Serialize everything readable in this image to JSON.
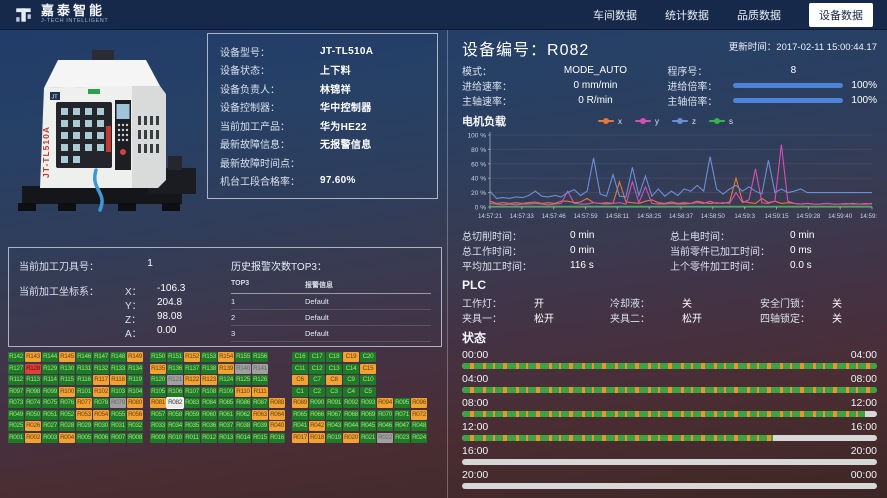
{
  "topbar": {
    "brand": "嘉泰智能",
    "brand_sub": "J-TECH INTELLIGENT",
    "nav": [
      {
        "label": "车间数据",
        "active": false
      },
      {
        "label": "统计数据",
        "active": false
      },
      {
        "label": "品质数据",
        "active": false
      },
      {
        "label": "设备数据",
        "active": true
      }
    ]
  },
  "machine_visual": {
    "side_label": "JT-TL510A",
    "logo": "JT"
  },
  "device_info": {
    "rows": [
      {
        "label": "设备型号：",
        "value": "JT-TL510A"
      },
      {
        "label": "设备状态：",
        "value": "上下料"
      },
      {
        "label": "设备负责人：",
        "value": "林锦祥"
      },
      {
        "label": "设备控制器：",
        "value": "华中控制器"
      },
      {
        "label": "当前加工产品：",
        "value": "华为HE22"
      },
      {
        "label": "最新故障信息：",
        "value": "无报警信息"
      },
      {
        "label": "最新故障时间点：",
        "value": ""
      },
      {
        "label": "机台工段合格率：",
        "value": "97.60%"
      }
    ]
  },
  "tool": {
    "tool_label": "当前加工刀具号：",
    "tool_value": "1",
    "coord_label": "当前加工坐标系：",
    "coords": [
      {
        "axis": "X：",
        "value": "-106.3"
      },
      {
        "axis": "Y：",
        "value": "204.8"
      },
      {
        "axis": "Z：",
        "value": "98.08"
      },
      {
        "axis": "A：",
        "value": "0.00"
      }
    ]
  },
  "alarm_top3": {
    "title": "历史报警次数TOP3：",
    "headers": [
      "TOP3",
      "报警信息"
    ],
    "rows": [
      [
        "1",
        "Default"
      ],
      [
        "2",
        "Default"
      ],
      [
        "3",
        "Default"
      ]
    ]
  },
  "device_header": {
    "title_label": "设备编号：",
    "title_value": "R082",
    "update_label": "更新时间：",
    "update_value": "2017-02-11 15:00:44.17"
  },
  "params": {
    "mode_label": "模式：",
    "mode_value": "MODE_AUTO",
    "program_label": "程序号：",
    "program_value": "8",
    "feed_rate_label": "进给速率：",
    "feed_rate_value": "0 mm/min",
    "feed_override_label": "进给倍率：",
    "feed_override_value": "100%",
    "feed_override_pct": 100,
    "spindle_rate_label": "主轴速率：",
    "spindle_rate_value": "0 R/min",
    "spindle_override_label": "主轴倍率：",
    "spindle_override_value": "100%",
    "spindle_override_pct": 100
  },
  "chart_data": {
    "type": "line",
    "title": "电机负载",
    "ylim": [
      0,
      100
    ],
    "grid": false,
    "legend_position": "top-right",
    "y_ticks": [
      "0 %",
      "20 %",
      "40 %",
      "60 %",
      "80 %",
      "100 %"
    ],
    "x_ticks": [
      "14:57:21",
      "14:57:33",
      "14:57:46",
      "14:57:59",
      "14:58:11",
      "14:58:25",
      "14:58:37",
      "14:58:50",
      "14:59:3",
      "14:59:15",
      "14:59:28",
      "14:59:40",
      "14:59:54"
    ],
    "series": [
      {
        "name": "x",
        "color": "#e8763a",
        "values": [
          8,
          5,
          6,
          5,
          6,
          5,
          6,
          7,
          5,
          6,
          5,
          8,
          8,
          6,
          7,
          12,
          6,
          5,
          6,
          5,
          35,
          7,
          6,
          5,
          8,
          10,
          6,
          5,
          7,
          5,
          6,
          5,
          8,
          6,
          5,
          6,
          5,
          7,
          40,
          8,
          6,
          5,
          12,
          6,
          8,
          5,
          6,
          5,
          4,
          5,
          4,
          4,
          5,
          4,
          4,
          4,
          5,
          4,
          4,
          5
        ]
      },
      {
        "name": "y",
        "color": "#d450b4",
        "values": [
          5,
          4,
          3,
          4,
          3,
          4,
          4,
          5,
          4,
          3,
          4,
          5,
          22,
          5,
          4,
          4,
          6,
          5,
          4,
          5,
          6,
          4,
          35,
          6,
          28,
          5,
          4,
          4,
          5,
          4,
          4,
          5,
          6,
          5,
          8,
          5,
          6,
          5,
          20,
          6,
          10,
          53,
          6,
          5,
          8,
          87,
          8,
          5,
          4,
          5,
          4,
          4,
          5,
          4,
          4,
          5,
          4,
          4,
          5,
          4
        ]
      },
      {
        "name": "z",
        "color": "#6b8fd4",
        "values": [
          22,
          12,
          13,
          12,
          14,
          13,
          16,
          22,
          15,
          14,
          16,
          14,
          20,
          24,
          16,
          22,
          68,
          18,
          15,
          45,
          15,
          14,
          55,
          16,
          43,
          15,
          25,
          15,
          22,
          16,
          25,
          22,
          30,
          22,
          70,
          25,
          18,
          25,
          30,
          22,
          28,
          22,
          18,
          65,
          20,
          25,
          20,
          22,
          25,
          20,
          20,
          20,
          20,
          20,
          20,
          20,
          20,
          20,
          20,
          20
        ]
      },
      {
        "name": "s",
        "color": "#35b44a",
        "values": [
          1,
          1,
          1,
          1,
          1,
          1,
          1,
          1,
          1,
          1,
          1,
          1,
          1,
          1,
          1,
          1,
          1,
          1,
          1,
          1,
          1,
          1,
          1,
          1,
          1,
          1,
          1,
          1,
          1,
          1,
          1,
          1,
          1,
          1,
          1,
          1,
          1,
          1,
          1,
          1,
          1,
          1,
          1,
          1,
          1,
          1,
          1,
          1,
          1,
          1,
          1,
          1,
          1,
          1,
          1,
          1,
          1,
          1,
          1,
          1
        ]
      }
    ]
  },
  "time_stats": {
    "left": [
      {
        "label": "总切削时间：",
        "value": "0 min"
      },
      {
        "label": "总工作时间：",
        "value": "0 min"
      },
      {
        "label": "平均加工时间：",
        "value": "116 s"
      }
    ],
    "right": [
      {
        "label": "总上电时间：",
        "value": "0 min"
      },
      {
        "label": "当前零件已加工时间：",
        "value": "0 ms"
      },
      {
        "label": "上个零件加工时间：",
        "value": "0.0 s"
      }
    ]
  },
  "plc": {
    "title": "PLC",
    "items": [
      {
        "label": "工作灯：",
        "value": "开"
      },
      {
        "label": "冷却液：",
        "value": "关"
      },
      {
        "label": "安全门锁：",
        "value": "关"
      },
      {
        "label": "夹具一：",
        "value": "松开"
      },
      {
        "label": "夹具二：",
        "value": "松开"
      },
      {
        "label": "四轴锁定：",
        "value": "关"
      }
    ]
  },
  "status": {
    "title": "状态",
    "bars": [
      {
        "start": "00:00",
        "end": "04:00",
        "filled": 1
      },
      {
        "start": "04:00",
        "end": "08:00",
        "filled": 1
      },
      {
        "start": "08:00",
        "end": "12:00",
        "filled": 0.97
      },
      {
        "start": "12:00",
        "end": "16:00",
        "filled": 0.75
      },
      {
        "start": "16:00",
        "end": "20:00",
        "filled": 0
      },
      {
        "start": "20:00",
        "end": "00:00",
        "filled": 0
      }
    ]
  },
  "colors": {
    "accent_blue": "#4d84d8",
    "cell_green": "#1e7a28",
    "cell_orange": "#f0a232",
    "cell_red": "#e04038",
    "cell_gray": "#a0a0a0",
    "status_green": "#3fa141",
    "status_orange": "#e5972f",
    "topbar_bg": "#16294a"
  },
  "machine_grid": {
    "rows": [
      [
        [
          [
            "R142",
            "g"
          ],
          [
            "R143",
            "o"
          ],
          [
            "R144",
            "g"
          ],
          [
            "R145",
            "o"
          ],
          [
            "R146",
            "g"
          ],
          [
            "R147",
            "g"
          ],
          [
            "R148",
            "g"
          ],
          [
            "R149",
            "o"
          ]
        ],
        [
          [
            "R150",
            "g"
          ],
          [
            "R151",
            "g"
          ],
          [
            "R152",
            "o"
          ],
          [
            "R153",
            "g"
          ],
          [
            "R154",
            "o"
          ],
          [
            "R155",
            "g"
          ],
          [
            "R156",
            "g"
          ]
        ],
        [
          [
            "C16",
            "g"
          ],
          [
            "C17",
            "g"
          ],
          [
            "C18",
            "g"
          ],
          [
            "C19",
            "o"
          ],
          [
            "C20",
            "g"
          ]
        ]
      ],
      [
        [
          [
            "R127",
            "g"
          ],
          [
            "R128",
            "r"
          ],
          [
            "R129",
            "g"
          ],
          [
            "R130",
            "g"
          ],
          [
            "R131",
            "g"
          ],
          [
            "R132",
            "g"
          ],
          [
            "R133",
            "g"
          ],
          [
            "R134",
            "g"
          ]
        ],
        [
          [
            "R135",
            "o"
          ],
          [
            "R136",
            "g"
          ],
          [
            "R137",
            "g"
          ],
          [
            "R138",
            "g"
          ],
          [
            "R139",
            "o"
          ],
          [
            "R140",
            "x"
          ],
          [
            "R141",
            "x"
          ]
        ],
        [
          [
            "C11",
            "g"
          ],
          [
            "C12",
            "g"
          ],
          [
            "C13",
            "g"
          ],
          [
            "C14",
            "g"
          ],
          [
            "C15",
            "o"
          ]
        ]
      ],
      [
        [
          [
            "R112",
            "g"
          ],
          [
            "R113",
            "g"
          ],
          [
            "R114",
            "g"
          ],
          [
            "R115",
            "g"
          ],
          [
            "R116",
            "g"
          ],
          [
            "R117",
            "o"
          ],
          [
            "R118",
            "o"
          ],
          [
            "R119",
            "g"
          ]
        ],
        [
          [
            "R120",
            "g"
          ],
          [
            "R121",
            "x"
          ],
          [
            "R122",
            "o"
          ],
          [
            "R123",
            "o"
          ],
          [
            "R124",
            "g"
          ],
          [
            "R125",
            "g"
          ],
          [
            "R126",
            "g"
          ]
        ],
        [
          [
            "C6",
            "o"
          ],
          [
            "C7",
            "g"
          ],
          [
            "C8",
            "o"
          ],
          [
            "C9",
            "g"
          ],
          [
            "C10",
            "g"
          ]
        ]
      ],
      [
        [
          [
            "R097",
            "g"
          ],
          [
            "R098",
            "g"
          ],
          [
            "R099",
            "g"
          ],
          [
            "R100",
            "o"
          ],
          [
            "R101",
            "g"
          ],
          [
            "R102",
            "o"
          ],
          [
            "R103",
            "g"
          ],
          [
            "R104",
            "g"
          ]
        ],
        [
          [
            "R105",
            "g"
          ],
          [
            "R106",
            "g"
          ],
          [
            "R107",
            "g"
          ],
          [
            "R108",
            "g"
          ],
          [
            "R109",
            "g"
          ],
          [
            "R110",
            "o"
          ],
          [
            "R111",
            "o"
          ]
        ],
        [
          [
            "C1",
            "g"
          ],
          [
            "C2",
            "g"
          ],
          [
            "C3",
            "g"
          ],
          [
            "C4",
            "g"
          ],
          [
            "C5",
            "g"
          ]
        ]
      ],
      [
        [
          [
            "R073",
            "g"
          ],
          [
            "R074",
            "g"
          ],
          [
            "R075",
            "g"
          ],
          [
            "R076",
            "g"
          ],
          [
            "R077",
            "o"
          ],
          [
            "R078",
            "g"
          ],
          [
            "R079",
            "x"
          ],
          [
            "R080",
            "o"
          ]
        ],
        [
          [
            "R081",
            "o"
          ],
          [
            "R082",
            "s"
          ],
          [
            "R083",
            "g"
          ],
          [
            "R084",
            "g"
          ],
          [
            "R085",
            "g"
          ],
          [
            "R086",
            "g"
          ],
          [
            "R087",
            "g"
          ],
          [
            "R088",
            "o"
          ]
        ],
        [
          [
            "R089",
            "o"
          ],
          [
            "R090",
            "g"
          ],
          [
            "R091",
            "g"
          ],
          [
            "R092",
            "g"
          ],
          [
            "R093",
            "g"
          ],
          [
            "R094",
            "o"
          ],
          [
            "R095",
            "g"
          ],
          [
            "R096",
            "o"
          ]
        ]
      ],
      [
        [
          [
            "R049",
            "g"
          ],
          [
            "R050",
            "g"
          ],
          [
            "R051",
            "g"
          ],
          [
            "R052",
            "g"
          ],
          [
            "R053",
            "o"
          ],
          [
            "R054",
            "o"
          ],
          [
            "R055",
            "g"
          ],
          [
            "R056",
            "o"
          ]
        ],
        [
          [
            "R057",
            "g"
          ],
          [
            "R058",
            "g"
          ],
          [
            "R059",
            "g"
          ],
          [
            "R060",
            "g"
          ],
          [
            "R061",
            "g"
          ],
          [
            "R062",
            "g"
          ],
          [
            "R063",
            "o"
          ],
          [
            "R064",
            "o"
          ]
        ],
        [
          [
            "R065",
            "g"
          ],
          [
            "R066",
            "g"
          ],
          [
            "R067",
            "g"
          ],
          [
            "R068",
            "g"
          ],
          [
            "R069",
            "g"
          ],
          [
            "R070",
            "g"
          ],
          [
            "R071",
            "g"
          ],
          [
            "R072",
            "o"
          ]
        ]
      ],
      [
        [
          [
            "R025",
            "g"
          ],
          [
            "R026",
            "o"
          ],
          [
            "R027",
            "g"
          ],
          [
            "R028",
            "g"
          ],
          [
            "R029",
            "g"
          ],
          [
            "R030",
            "g"
          ],
          [
            "R031",
            "g"
          ],
          [
            "R032",
            "g"
          ]
        ],
        [
          [
            "R033",
            "g"
          ],
          [
            "R034",
            "g"
          ],
          [
            "R035",
            "g"
          ],
          [
            "R036",
            "g"
          ],
          [
            "R037",
            "g"
          ],
          [
            "R038",
            "g"
          ],
          [
            "R039",
            "g"
          ],
          [
            "R040",
            "o"
          ]
        ],
        [
          [
            "R041",
            "g"
          ],
          [
            "R042",
            "o"
          ],
          [
            "R043",
            "g"
          ],
          [
            "R044",
            "g"
          ],
          [
            "R045",
            "g"
          ],
          [
            "R046",
            "g"
          ],
          [
            "R047",
            "g"
          ],
          [
            "R048",
            "g"
          ]
        ]
      ],
      [
        [
          [
            "R001",
            "g"
          ],
          [
            "R002",
            "o"
          ],
          [
            "R003",
            "g"
          ],
          [
            "R004",
            "o"
          ],
          [
            "R005",
            "g"
          ],
          [
            "R006",
            "g"
          ],
          [
            "R007",
            "g"
          ],
          [
            "R008",
            "g"
          ]
        ],
        [
          [
            "R009",
            "g"
          ],
          [
            "R010",
            "g"
          ],
          [
            "R011",
            "g"
          ],
          [
            "R012",
            "g"
          ],
          [
            "R013",
            "g"
          ],
          [
            "R014",
            "g"
          ],
          [
            "R015",
            "g"
          ],
          [
            "R016",
            "g"
          ]
        ],
        [
          [
            "R017",
            "o"
          ],
          [
            "R018",
            "o"
          ],
          [
            "R019",
            "g"
          ],
          [
            "R020",
            "o"
          ],
          [
            "R021",
            "g"
          ],
          [
            "R022",
            "x"
          ],
          [
            "R023",
            "g"
          ],
          [
            "R024",
            "g"
          ]
        ]
      ]
    ]
  }
}
